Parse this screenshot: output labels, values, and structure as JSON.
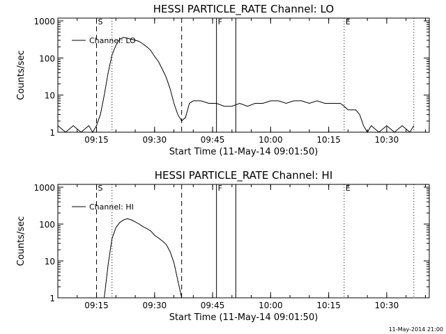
{
  "chart_data": [
    {
      "type": "line",
      "title": "HESSI PARTICLE_RATE Channel: LO",
      "xlabel": "Start Time (11-May-14 09:01:50)",
      "ylabel": "Counts/sec",
      "yscale": "log",
      "ylim": [
        1,
        1000
      ],
      "xlim_minutes": [
        "09:05",
        "10:41"
      ],
      "yticks": [
        "1",
        "10",
        "100",
        "1000"
      ],
      "xticks": [
        "09:15",
        "09:30",
        "09:45",
        "10:00",
        "10:15",
        "10:30"
      ],
      "legend": {
        "label": "Channel: LO",
        "position": "top-left"
      },
      "markers": [
        {
          "label": "S",
          "time": "09:15",
          "style": "dashed"
        },
        {
          "label": "F",
          "time": "09:46",
          "style": "solid"
        },
        {
          "label": "E",
          "time": "10:19",
          "style": "dotted"
        }
      ],
      "vlines": [
        {
          "time": "09:15",
          "style": "dashed"
        },
        {
          "time": "09:19",
          "style": "dotted"
        },
        {
          "time": "09:37",
          "style": "dashed"
        },
        {
          "time": "09:46",
          "style": "solid"
        },
        {
          "time": "09:51",
          "style": "solid"
        },
        {
          "time": "10:19",
          "style": "dotted"
        },
        {
          "time": "10:37",
          "style": "dotted"
        }
      ],
      "series": [
        {
          "name": "Channel: LO",
          "x": [
            "09:05",
            "09:07",
            "09:09",
            "09:11",
            "09:13",
            "09:14",
            "09:15",
            "09:16",
            "09:17",
            "09:18",
            "09:19",
            "09:20",
            "09:21",
            "09:22",
            "09:23",
            "09:24",
            "09:25",
            "09:26",
            "09:27",
            "09:28",
            "09:29",
            "09:30",
            "09:31",
            "09:32",
            "09:33",
            "09:34",
            "09:35",
            "09:36",
            "09:37",
            "09:38",
            "09:39",
            "09:40",
            "09:42",
            "09:44",
            "09:46",
            "09:48",
            "09:50",
            "09:52",
            "09:54",
            "09:56",
            "09:58",
            "10:00",
            "10:02",
            "10:04",
            "10:06",
            "10:08",
            "10:10",
            "10:12",
            "10:14",
            "10:16",
            "10:18",
            "10:19",
            "10:20",
            "10:22",
            "10:23",
            "10:24",
            "10:25",
            "10:26",
            "10:28",
            "10:30",
            "10:32",
            "10:34",
            "10:36",
            "10:37"
          ],
          "y": [
            1.5,
            1,
            1.5,
            1,
            1.5,
            1,
            1.5,
            3,
            10,
            40,
            120,
            220,
            320,
            360,
            340,
            320,
            300,
            280,
            240,
            200,
            160,
            110,
            80,
            50,
            30,
            15,
            6,
            3,
            2,
            2.5,
            6,
            7,
            7,
            6,
            6,
            5,
            5,
            6,
            5,
            6,
            6,
            7,
            7,
            6,
            7,
            7,
            6,
            7,
            6,
            6,
            6,
            5,
            4,
            4,
            3,
            1.5,
            1,
            1.5,
            1,
            1.5,
            1,
            1.5,
            1,
            1.5
          ]
        }
      ]
    },
    {
      "type": "line",
      "title": "HESSI PARTICLE_RATE Channel: HI",
      "xlabel": "Start Time (11-May-14 09:01:50)",
      "ylabel": "Counts/sec",
      "yscale": "log",
      "ylim": [
        1,
        1000
      ],
      "xlim_minutes": [
        "09:05",
        "10:41"
      ],
      "yticks": [
        "1",
        "10",
        "100",
        "1000"
      ],
      "xticks": [
        "09:15",
        "09:30",
        "09:45",
        "10:00",
        "10:15",
        "10:30"
      ],
      "legend": {
        "label": "Channel: HI",
        "position": "top-left"
      },
      "markers": [
        {
          "label": "S",
          "time": "09:15",
          "style": "dashed"
        },
        {
          "label": "F",
          "time": "09:46",
          "style": "solid"
        },
        {
          "label": "E",
          "time": "10:19",
          "style": "dotted"
        }
      ],
      "vlines": [
        {
          "time": "09:15",
          "style": "dashed"
        },
        {
          "time": "09:19",
          "style": "dotted"
        },
        {
          "time": "09:37",
          "style": "dashed"
        },
        {
          "time": "09:46",
          "style": "solid"
        },
        {
          "time": "09:51",
          "style": "solid"
        },
        {
          "time": "10:19",
          "style": "dotted"
        },
        {
          "time": "10:37",
          "style": "dotted"
        }
      ],
      "series": [
        {
          "name": "Channel: HI",
          "x": [
            "09:17",
            "09:18",
            "09:19",
            "09:20",
            "09:21",
            "09:22",
            "09:23",
            "09:24",
            "09:25",
            "09:26",
            "09:27",
            "09:28",
            "09:29",
            "09:30",
            "09:31",
            "09:32",
            "09:33",
            "09:34",
            "09:35",
            "09:36",
            "09:37"
          ],
          "y": [
            1,
            8,
            40,
            80,
            110,
            130,
            140,
            130,
            115,
            100,
            85,
            75,
            65,
            50,
            42,
            35,
            28,
            18,
            9,
            3,
            1
          ]
        }
      ]
    }
  ],
  "timestamp": "11-May-2014 21:00"
}
